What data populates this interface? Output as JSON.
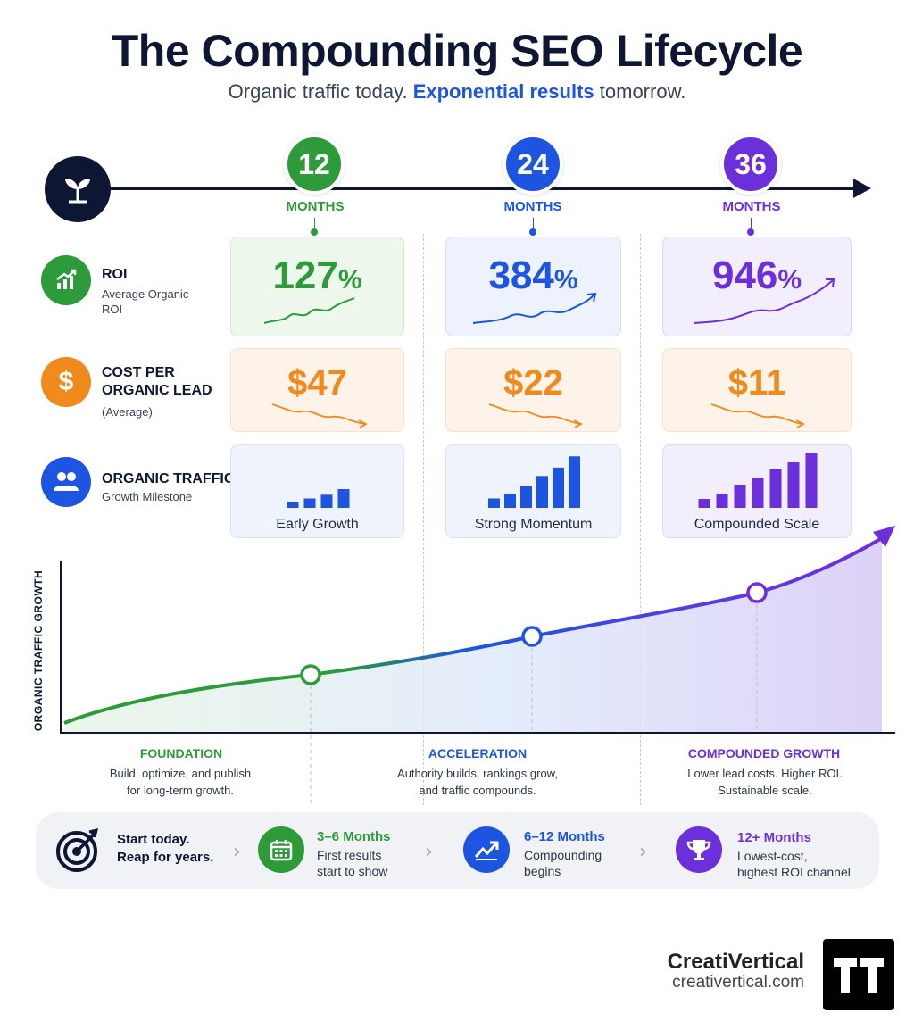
{
  "header": {
    "title": "The Compounding SEO Lifecycle",
    "subtitle_before": "Organic traffic today. ",
    "subtitle_highlight": "Exponential results",
    "subtitle_after": " tomorrow."
  },
  "colors": {
    "green": "#2e9b3a",
    "blue": "#1d55e0",
    "purple": "#6b2fdc",
    "orange": "#f08a1c",
    "navy": "#0d1733"
  },
  "timeline": {
    "start_icon": "sprout-icon",
    "milestones": [
      {
        "number": "12",
        "unit": "MONTHS"
      },
      {
        "number": "24",
        "unit": "MONTHS"
      },
      {
        "number": "36",
        "unit": "MONTHS"
      }
    ]
  },
  "rows": {
    "roi": {
      "title": "ROI",
      "sub1": "Average Organic",
      "sub2": "ROI",
      "icon": "chart-up-icon"
    },
    "cost": {
      "title1": "COST PER",
      "title2": "ORGANIC LEAD",
      "sub": "(Average)",
      "icon": "dollar-icon"
    },
    "traffic": {
      "title": "ORGANIC TRAFFIC",
      "sub": "Growth Milestone",
      "icon": "users-icon"
    }
  },
  "cards": {
    "roi": [
      {
        "value": "127",
        "suffix": "%"
      },
      {
        "value": "384",
        "suffix": "%"
      },
      {
        "value": "946",
        "suffix": "%"
      }
    ],
    "cost": [
      "$47",
      "$22",
      "$11"
    ],
    "traffic": [
      {
        "caption": "Early Growth",
        "bars": [
          1,
          1.5,
          2.1,
          3
        ]
      },
      {
        "caption": "Strong Momentum",
        "bars": [
          1,
          1.5,
          2.3,
          3.4,
          4.3,
          5.5
        ]
      },
      {
        "caption": "Compounded Scale",
        "bars": [
          1,
          1.6,
          2.6,
          3.4,
          4.3,
          5.1,
          6.1
        ]
      }
    ]
  },
  "chart": {
    "ylabel": "ORGANIC TRAFFIC GROWTH"
  },
  "phases": [
    {
      "title": "FOUNDATION",
      "desc1": "Build, optimize, and publish",
      "desc2": "for long-term growth."
    },
    {
      "title": "ACCELERATION",
      "desc1": "Authority builds, rankings grow,",
      "desc2": "and traffic compounds."
    },
    {
      "title": "COMPOUNDED GROWTH",
      "desc1": "Lower lead costs. Higher ROI.",
      "desc2": "Sustainable scale."
    }
  ],
  "bottom": {
    "start_line1": "Start today.",
    "start_line2": "Reap for years.",
    "start_icon": "target-icon",
    "steps": [
      {
        "title": "3–6 Months",
        "desc1": "First results",
        "desc2": "start to show",
        "icon": "calendar-icon"
      },
      {
        "title": "6–12 Months",
        "desc1": "Compounding",
        "desc2": "begins",
        "icon": "trend-up-icon"
      },
      {
        "title": "12+ Months",
        "desc1": "Lowest-cost,",
        "desc2": "highest ROI channel",
        "icon": "trophy-icon"
      }
    ]
  },
  "brand": {
    "name": "CreatiVertical",
    "url": "creativertical.com",
    "logo": "tt-logo"
  }
}
